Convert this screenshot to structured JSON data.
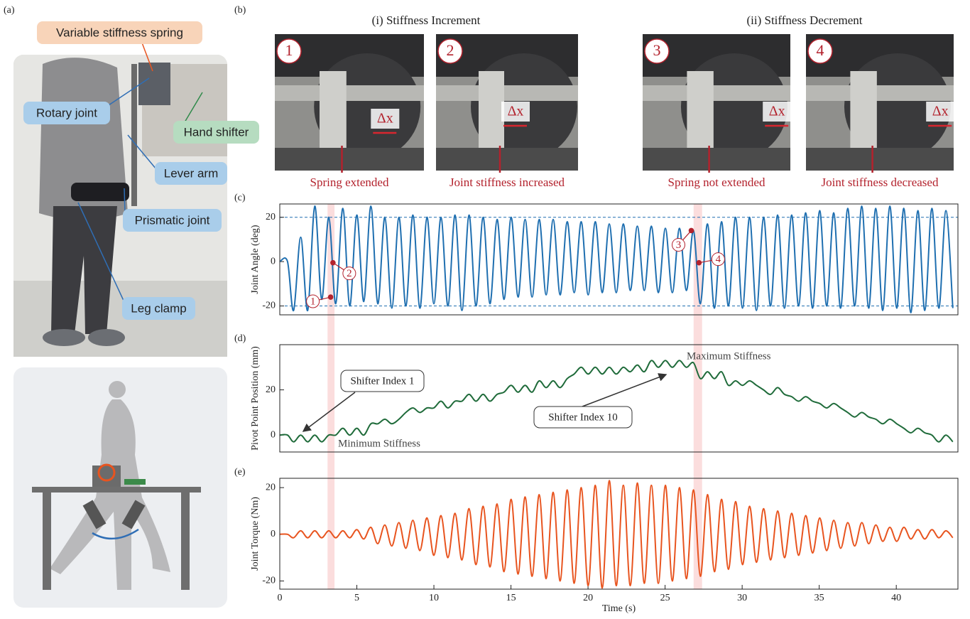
{
  "panel_a": {
    "label": "(a)",
    "callouts": [
      "Variable stiffness spring",
      "Rotary joint",
      "Hand shifter",
      "Lever arm",
      "Prismatic joint",
      "Leg clamp"
    ]
  },
  "panel_b": {
    "label": "(b)",
    "groups": [
      {
        "title": "(i) Stiffness Increment",
        "photos": [
          {
            "step": "1",
            "delta": "Δx",
            "caption": "Spring extended"
          },
          {
            "step": "2",
            "delta": "Δx",
            "caption": "Joint stiffness increased"
          }
        ]
      },
      {
        "title": "(ii) Stiffness Decrement",
        "photos": [
          {
            "step": "3",
            "delta": "Δx",
            "caption": "Spring not extended"
          },
          {
            "step": "4",
            "delta": "Δx",
            "caption": "Joint stiffness decreased"
          }
        ]
      }
    ]
  },
  "highlight_spans": [
    [
      3.1,
      3.55
    ],
    [
      26.85,
      27.4
    ]
  ],
  "chart_data": [
    {
      "type": "line",
      "panel": "(c)",
      "ylabel": "Joint Angle (deg)",
      "x": [
        0,
        0.5,
        0.9,
        1.36,
        1.81,
        2.27,
        2.72,
        3.18,
        3.63,
        4.09,
        4.54,
        5.0,
        5.45,
        5.91,
        6.36,
        6.82,
        7.27,
        7.73,
        8.18,
        8.64,
        9.09,
        9.55,
        10.0,
        10.46,
        10.91,
        11.37,
        11.82,
        12.28,
        12.73,
        13.19,
        13.64,
        14.1,
        14.55,
        15.01,
        15.46,
        15.92,
        16.37,
        16.83,
        17.28,
        17.74,
        18.19,
        18.65,
        19.1,
        19.56,
        20.01,
        20.47,
        20.92,
        21.38,
        21.83,
        22.29,
        22.74,
        23.2,
        23.65,
        24.11,
        24.56,
        25.02,
        25.47,
        25.93,
        26.38,
        26.84,
        27.29,
        27.75,
        28.2,
        28.66,
        29.11,
        29.57,
        30.02,
        30.48,
        30.93,
        31.39,
        31.84,
        32.3,
        32.75,
        33.21,
        33.66,
        34.12,
        34.57,
        35.03,
        35.48,
        35.94,
        36.39,
        36.85,
        37.3,
        37.76,
        38.21,
        38.67,
        39.12,
        39.58,
        40.03,
        40.49,
        40.94,
        41.4,
        41.85,
        42.31,
        42.76,
        43.22,
        43.67
      ],
      "series": [
        {
          "color": "#1f6fb0",
          "values": [
            0,
            0,
            -22,
            11,
            -22,
            25,
            -17,
            20,
            -19,
            24,
            -20,
            21,
            -18,
            25,
            -19,
            20,
            -21,
            20,
            -20,
            21,
            -21,
            20,
            -19,
            20,
            -20,
            21,
            -22,
            21,
            -20,
            20,
            -19,
            19,
            -17,
            20,
            -16,
            19,
            -16,
            19,
            -15,
            19,
            -15,
            18,
            -14,
            18,
            -15,
            18,
            -14,
            17,
            -14,
            17,
            -13,
            16,
            -13,
            16,
            -14,
            15,
            -14,
            15,
            -13,
            14,
            -19,
            17,
            -21,
            18,
            -20,
            20,
            -21,
            20,
            -22,
            20,
            -20,
            21,
            -21,
            21,
            -20,
            22,
            -21,
            23,
            -20,
            22,
            -21,
            24,
            -20,
            25,
            -21,
            24,
            -22,
            25,
            -21,
            24,
            -23,
            23,
            -22,
            24,
            -21,
            23,
            -21
          ]
        }
      ],
      "xlim": [
        0,
        44
      ],
      "ylim": [
        -24,
        26
      ],
      "yticks": [
        -20,
        0,
        20
      ],
      "reference_lines": [
        -20,
        20
      ],
      "points": [
        {
          "label": "1",
          "x": 3.3,
          "y": -16
        },
        {
          "label": "2",
          "x": 3.45,
          "y": -0.5
        },
        {
          "label": "3",
          "x": 26.7,
          "y": 14
        },
        {
          "label": "4",
          "x": 27.2,
          "y": -0.5
        }
      ]
    },
    {
      "type": "line",
      "panel": "(d)",
      "ylabel": "Pivot Point Position (mm)",
      "x": [
        0,
        0.5,
        0.9,
        1.36,
        1.81,
        2.27,
        2.72,
        3.18,
        3.63,
        4.09,
        4.54,
        5.0,
        5.45,
        5.91,
        6.36,
        6.82,
        7.27,
        7.73,
        8.18,
        8.64,
        9.09,
        9.55,
        10.0,
        10.46,
        10.91,
        11.37,
        11.82,
        12.28,
        12.73,
        13.19,
        13.64,
        14.1,
        14.55,
        15.01,
        15.46,
        15.92,
        16.37,
        16.83,
        17.28,
        17.74,
        18.19,
        18.65,
        19.1,
        19.56,
        20.01,
        20.47,
        20.92,
        21.38,
        21.83,
        22.29,
        22.74,
        23.2,
        23.65,
        24.11,
        24.56,
        25.02,
        25.47,
        25.93,
        26.38,
        26.84,
        27.29,
        27.75,
        28.2,
        28.66,
        29.11,
        29.57,
        30.02,
        30.48,
        30.93,
        31.39,
        31.84,
        32.3,
        32.75,
        33.21,
        33.66,
        34.12,
        34.57,
        35.03,
        35.48,
        35.94,
        36.39,
        36.85,
        37.3,
        37.76,
        38.21,
        38.67,
        39.12,
        39.58,
        40.03,
        40.49,
        40.94,
        41.4,
        41.85,
        42.31,
        42.76,
        43.22,
        43.67
      ],
      "series": [
        {
          "color": "#1f6b3a",
          "values": [
            0,
            0,
            -3,
            0,
            -3,
            0,
            -3,
            0,
            0,
            3,
            0,
            3,
            0,
            5,
            5,
            7,
            5,
            7,
            10,
            12,
            10,
            12,
            12,
            15,
            12,
            15,
            15,
            18,
            15,
            18,
            15,
            18,
            19,
            22,
            19,
            22,
            19,
            24,
            21,
            24,
            21,
            25,
            27,
            30,
            27,
            30,
            27,
            30,
            27,
            30,
            28,
            31,
            28,
            33,
            30,
            33,
            30,
            33,
            30,
            32,
            25,
            28,
            25,
            28,
            22,
            24,
            22,
            24,
            22,
            20,
            18,
            21,
            18,
            17,
            15,
            17,
            15,
            14,
            12,
            14,
            12,
            10,
            8,
            10,
            8,
            7,
            5,
            7,
            5,
            3,
            1,
            3,
            1,
            0,
            -3,
            0,
            -3
          ]
        }
      ],
      "xlim": [
        0,
        44
      ],
      "ylim": [
        -7.5,
        40
      ],
      "yticks": [
        0,
        20
      ],
      "annotations": [
        "Shifter Index 1",
        "Minimum Stiffness",
        "Shifter Index 10",
        "Maximum Stiffness"
      ]
    },
    {
      "type": "line",
      "panel": "(e)",
      "ylabel": "Joint Torque (Nm)",
      "xlabel": "Time (s)",
      "x": [
        0,
        0.5,
        0.9,
        1.36,
        1.81,
        2.27,
        2.72,
        3.18,
        3.63,
        4.09,
        4.54,
        5.0,
        5.45,
        5.91,
        6.36,
        6.82,
        7.27,
        7.73,
        8.18,
        8.64,
        9.09,
        9.55,
        10.0,
        10.46,
        10.91,
        11.37,
        11.82,
        12.28,
        12.73,
        13.19,
        13.64,
        14.1,
        14.55,
        15.01,
        15.46,
        15.92,
        16.37,
        16.83,
        17.28,
        17.74,
        18.19,
        18.65,
        19.1,
        19.56,
        20.01,
        20.47,
        20.92,
        21.38,
        21.83,
        22.29,
        22.74,
        23.2,
        23.65,
        24.11,
        24.56,
        25.02,
        25.47,
        25.93,
        26.38,
        26.84,
        27.29,
        27.75,
        28.2,
        28.66,
        29.11,
        29.57,
        30.02,
        30.48,
        30.93,
        31.39,
        31.84,
        32.3,
        32.75,
        33.21,
        33.66,
        34.12,
        34.57,
        35.03,
        35.48,
        35.94,
        36.39,
        36.85,
        37.3,
        37.76,
        38.21,
        38.67,
        39.12,
        39.58,
        40.03,
        40.49,
        40.94,
        41.4,
        41.85,
        42.31,
        42.76,
        43.22,
        43.67
      ],
      "series": [
        {
          "color": "#e8541f",
          "values": [
            0,
            0,
            -1.5,
            1.5,
            -1.5,
            1.5,
            -1.5,
            1.5,
            -1.5,
            1.5,
            -1.5,
            2,
            -2,
            3,
            -4,
            4,
            -5,
            5,
            -6,
            6,
            -7,
            7,
            -9,
            8,
            -10,
            9,
            -11,
            11,
            -13,
            12,
            -14,
            13,
            -16,
            15,
            -17,
            16,
            -18,
            17,
            -19,
            18,
            -20,
            19,
            -21,
            20,
            -22,
            21,
            -23,
            23,
            -22,
            21,
            -22,
            22,
            -21,
            21,
            -21,
            21,
            -20,
            20,
            -19,
            19,
            -18,
            17,
            -16,
            15,
            -15,
            14,
            -13,
            12,
            -12,
            11,
            -11,
            10,
            -10,
            9,
            -9,
            8,
            -8,
            7,
            -7,
            6,
            -6,
            5,
            -5,
            5,
            -4,
            4,
            -3,
            3,
            -3,
            3,
            -2,
            2,
            -2,
            2,
            -1.5,
            1.5,
            -1.5
          ]
        }
      ],
      "xlim": [
        0,
        44
      ],
      "ylim": [
        -23.5,
        24
      ],
      "yticks": [
        -20,
        0,
        20
      ],
      "xticks": [
        0,
        5,
        10,
        15,
        20,
        25,
        30,
        35,
        40
      ]
    }
  ]
}
